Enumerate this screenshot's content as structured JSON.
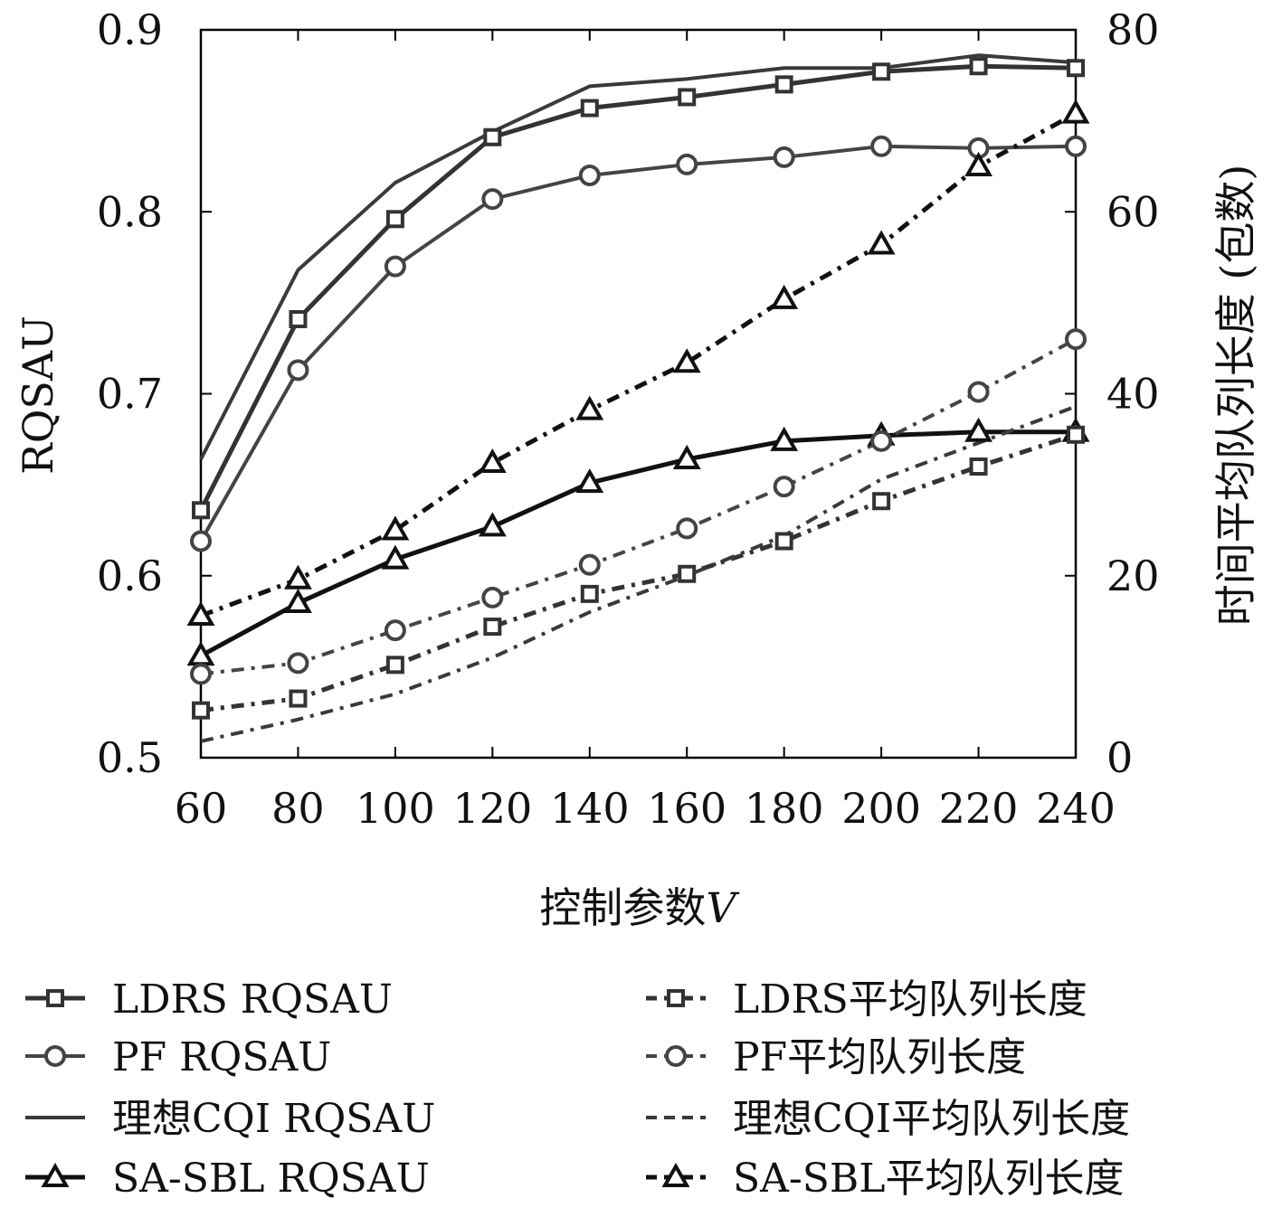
{
  "chart_data": {
    "type": "line",
    "x": [
      60,
      80,
      100,
      120,
      140,
      160,
      180,
      200,
      220,
      240
    ],
    "xlabel": "控制参数",
    "xlabel_var": "V",
    "ylabel": "RQSAU",
    "y2label": "时间平均队列长度 (包数)",
    "xlim": [
      60,
      240
    ],
    "ylim": [
      0.5,
      0.9
    ],
    "y2lim": [
      0,
      80
    ],
    "xticks": [
      "60",
      "80",
      "100",
      "120",
      "140",
      "160",
      "180",
      "200",
      "220",
      "240"
    ],
    "yticks": [
      "0.5",
      "0.6",
      "0.7",
      "0.8",
      "0.9"
    ],
    "y2ticks": [
      "0",
      "20",
      "40",
      "60",
      "80"
    ],
    "grid": false,
    "legend_placement": "bottom",
    "series": [
      {
        "name": "LDRS RQSAU",
        "axis": "left",
        "style": "solid",
        "marker": "square",
        "color": "#333333",
        "width": 5,
        "values": [
          0.636,
          0.741,
          0.796,
          0.841,
          0.857,
          0.863,
          0.87,
          0.877,
          0.88,
          0.879
        ]
      },
      {
        "name": "PF RQSAU",
        "axis": "left",
        "style": "solid",
        "marker": "circle",
        "color": "#444444",
        "width": 4,
        "values": [
          0.619,
          0.713,
          0.77,
          0.807,
          0.82,
          0.826,
          0.83,
          0.836,
          0.835,
          0.836
        ]
      },
      {
        "name": "理想CQI RQSAU",
        "axis": "left",
        "style": "solid",
        "marker": "none",
        "color": "#3a3a3a",
        "width": 4,
        "values": [
          0.664,
          0.768,
          0.816,
          0.844,
          0.869,
          0.873,
          0.879,
          0.879,
          0.886,
          0.882
        ]
      },
      {
        "name": "SA-SBL RQSAU",
        "axis": "left",
        "style": "solid",
        "marker": "triangle",
        "color": "#111111",
        "width": 5,
        "values": [
          0.556,
          0.585,
          0.609,
          0.627,
          0.651,
          0.664,
          0.674,
          0.677,
          0.679,
          0.679
        ]
      },
      {
        "name": "LDRS平均队列长度",
        "axis": "right",
        "style": "dashdot",
        "marker": "square",
        "color": "#333333",
        "width": 5,
        "values": [
          5.2,
          6.5,
          10.2,
          14.4,
          18.0,
          20.2,
          23.8,
          28.2,
          32.0,
          35.5
        ]
      },
      {
        "name": "PF平均队列长度",
        "axis": "right",
        "style": "dashdot",
        "marker": "circle",
        "color": "#444444",
        "width": 4,
        "values": [
          9.2,
          10.4,
          14.0,
          17.6,
          21.2,
          25.2,
          29.8,
          34.8,
          40.2,
          46.0
        ]
      },
      {
        "name": "理想CQI平均队列长度",
        "axis": "right",
        "style": "dashdot",
        "marker": "none",
        "color": "#3a3a3a",
        "width": 4,
        "values": [
          1.8,
          4.2,
          7.0,
          11.0,
          16.0,
          20.0,
          24.4,
          30.6,
          34.6,
          38.6
        ]
      },
      {
        "name": "SA-SBL平均队列长度",
        "axis": "right",
        "style": "dashdot",
        "marker": "triangle",
        "color": "#111111",
        "width": 5,
        "values": [
          15.6,
          19.6,
          25.0,
          32.4,
          38.2,
          43.4,
          50.4,
          56.4,
          65.0,
          70.8
        ]
      }
    ]
  }
}
